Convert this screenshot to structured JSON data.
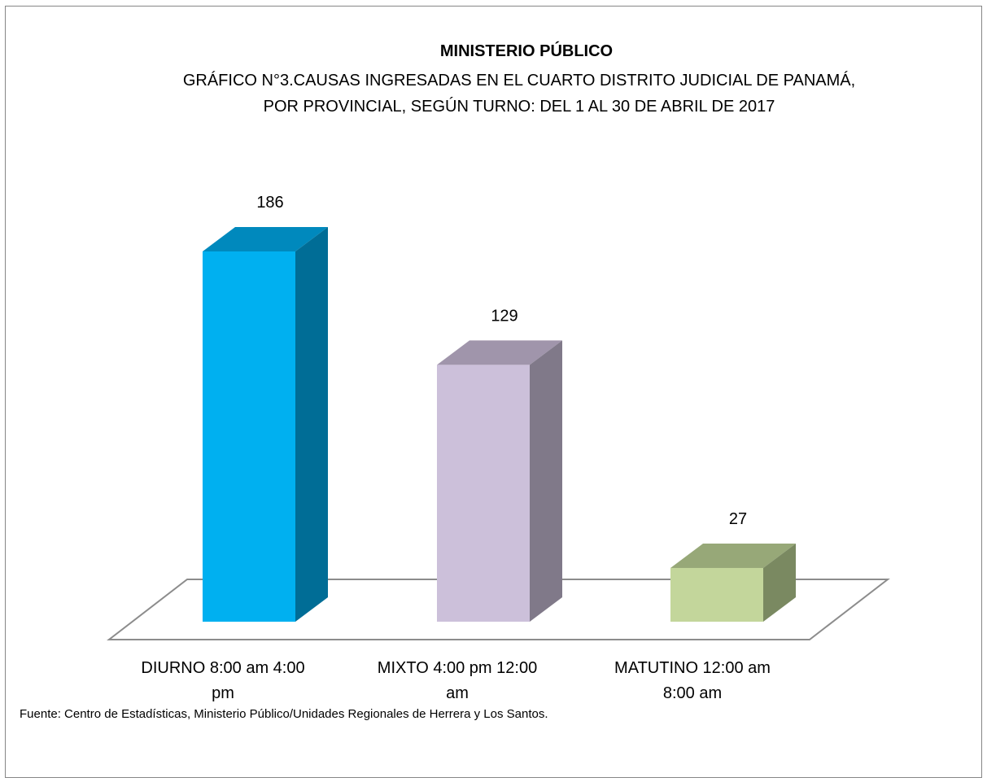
{
  "title": "MINISTERIO PÚBLICO",
  "subtitle_lines": [
    "GRÁFICO  N°3.CAUSAS INGRESADAS EN EL CUARTO  DISTRITO JUDICIAL DE PANAMÁ,",
    "POR PROVINCIAL, SEGÚN TURNO: DEL 1 AL 30 DE ABRIL  DE 2017"
  ],
  "category_lines": [
    [
      "DIURNO 8:00 am 4:00",
      "pm"
    ],
    [
      "MIXTO 4:00 pm 12:00",
      "am"
    ],
    [
      "MATUTINO 12:00 am",
      "8:00 am"
    ]
  ],
  "source": "Fuente: Centro de Estadísticas, Ministerio Público/Unidades Regionales de Herrera y Los Santos.",
  "chart_data": {
    "type": "bar",
    "style": "3d-column",
    "title": "MINISTERIO PÚBLICO",
    "subtitle": "GRÁFICO  N°3.CAUSAS INGRESADAS EN EL CUARTO  DISTRITO JUDICIAL DE PANAMÁ, POR PROVINCIAL, SEGÚN TURNO: DEL 1 AL 30 DE ABRIL  DE 2017",
    "categories": [
      "DIURNO 8:00 am 4:00 pm",
      "MIXTO 4:00 pm 12:00 am",
      "MATUTINO 12:00 am 8:00 am"
    ],
    "values": [
      186,
      129,
      27
    ],
    "data_labels": [
      "186",
      "129",
      "27"
    ],
    "ylim": [
      0,
      186
    ],
    "xlabel": "",
    "ylabel": "",
    "grid": false,
    "legend": "none",
    "colors": [
      {
        "front": "#00b0f0",
        "top": "#0089bd",
        "side": "#006d96"
      },
      {
        "front": "#ccc0da",
        "top": "#a095ab",
        "side": "#807989"
      },
      {
        "front": "#c3d69b",
        "top": "#97a878",
        "side": "#7a8961"
      }
    ]
  }
}
